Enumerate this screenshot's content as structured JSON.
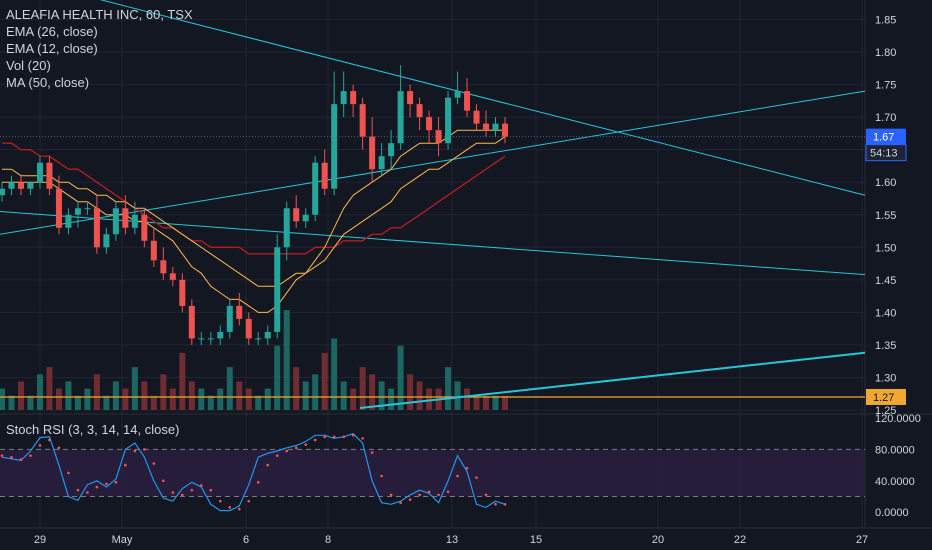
{
  "legend": {
    "title": "ALEAFIA HEALTH INC, 60, TSX",
    "ema26": "EMA (26, close)",
    "ema12": "EMA (12, close)",
    "vol": "Vol (20)",
    "ma50": "MA (50, close)"
  },
  "oscillator_label": "Stoch RSI (3, 3, 14, 14, close)",
  "price_badges": {
    "last": "1.67",
    "countdown": "54:13",
    "hline": "1.27"
  },
  "colors": {
    "background": "#131722",
    "up": "#26a69a",
    "down": "#ef5350",
    "ema26": "#ffb74d",
    "ema12": "#ffb74d",
    "ma50": "#b71c1c",
    "trendline": "#26c6da",
    "hline": "#f0a830",
    "stoch_k": "#2196f3",
    "stoch_d": "#ff5252",
    "badge_last": "#2962ff"
  },
  "chart_data": [
    {
      "type": "candlestick",
      "yaxis_ticks": [
        "1.85",
        "1.80",
        "1.75",
        "1.70",
        "1.65",
        "1.60",
        "1.55",
        "1.50",
        "1.45",
        "1.40",
        "1.35",
        "1.30",
        "1.25"
      ],
      "ylim": [
        1.25,
        1.88
      ],
      "xaxis_ticks": [
        "29",
        "May",
        "6",
        "8",
        "13",
        "15",
        "20",
        "22",
        "27"
      ],
      "series": [
        {
          "name": "price",
          "ohlc": [
            [
              1.58,
              1.6,
              1.57,
              1.59
            ],
            [
              1.59,
              1.61,
              1.58,
              1.6
            ],
            [
              1.6,
              1.61,
              1.58,
              1.59
            ],
            [
              1.59,
              1.6,
              1.58,
              1.6
            ],
            [
              1.6,
              1.64,
              1.59,
              1.63
            ],
            [
              1.63,
              1.64,
              1.58,
              1.59
            ],
            [
              1.59,
              1.61,
              1.52,
              1.53
            ],
            [
              1.53,
              1.56,
              1.52,
              1.55
            ],
            [
              1.55,
              1.57,
              1.53,
              1.56
            ],
            [
              1.56,
              1.57,
              1.55,
              1.56
            ],
            [
              1.56,
              1.58,
              1.49,
              1.5
            ],
            [
              1.5,
              1.53,
              1.49,
              1.52
            ],
            [
              1.52,
              1.57,
              1.51,
              1.56
            ],
            [
              1.56,
              1.58,
              1.52,
              1.53
            ],
            [
              1.53,
              1.57,
              1.52,
              1.55
            ],
            [
              1.55,
              1.56,
              1.5,
              1.51
            ],
            [
              1.51,
              1.53,
              1.47,
              1.48
            ],
            [
              1.48,
              1.5,
              1.45,
              1.46
            ],
            [
              1.46,
              1.47,
              1.44,
              1.45
            ],
            [
              1.45,
              1.46,
              1.4,
              1.41
            ],
            [
              1.41,
              1.42,
              1.35,
              1.36
            ],
            [
              1.36,
              1.37,
              1.35,
              1.36
            ],
            [
              1.36,
              1.37,
              1.35,
              1.36
            ],
            [
              1.36,
              1.38,
              1.35,
              1.37
            ],
            [
              1.37,
              1.42,
              1.36,
              1.41
            ],
            [
              1.41,
              1.43,
              1.38,
              1.39
            ],
            [
              1.39,
              1.4,
              1.35,
              1.36
            ],
            [
              1.36,
              1.37,
              1.35,
              1.36
            ],
            [
              1.36,
              1.38,
              1.35,
              1.37
            ],
            [
              1.37,
              1.52,
              1.36,
              1.5
            ],
            [
              1.5,
              1.57,
              1.48,
              1.56
            ],
            [
              1.56,
              1.58,
              1.53,
              1.54
            ],
            [
              1.54,
              1.56,
              1.53,
              1.55
            ],
            [
              1.55,
              1.64,
              1.54,
              1.63
            ],
            [
              1.63,
              1.65,
              1.58,
              1.59
            ],
            [
              1.59,
              1.77,
              1.58,
              1.72
            ],
            [
              1.72,
              1.77,
              1.7,
              1.74
            ],
            [
              1.74,
              1.75,
              1.7,
              1.72
            ],
            [
              1.72,
              1.73,
              1.65,
              1.67
            ],
            [
              1.67,
              1.7,
              1.6,
              1.62
            ],
            [
              1.62,
              1.66,
              1.61,
              1.64
            ],
            [
              1.64,
              1.68,
              1.62,
              1.66
            ],
            [
              1.66,
              1.78,
              1.65,
              1.74
            ],
            [
              1.74,
              1.75,
              1.7,
              1.72
            ],
            [
              1.72,
              1.73,
              1.68,
              1.7
            ],
            [
              1.7,
              1.71,
              1.66,
              1.68
            ],
            [
              1.68,
              1.7,
              1.64,
              1.66
            ],
            [
              1.66,
              1.74,
              1.65,
              1.73
            ],
            [
              1.73,
              1.77,
              1.72,
              1.74
            ],
            [
              1.74,
              1.76,
              1.7,
              1.71
            ],
            [
              1.71,
              1.72,
              1.68,
              1.69
            ],
            [
              1.69,
              1.71,
              1.67,
              1.68
            ],
            [
              1.68,
              1.7,
              1.67,
              1.69
            ],
            [
              1.69,
              1.7,
              1.66,
              1.67
            ]
          ]
        },
        {
          "name": "EMA (12, close)",
          "values": [
            1.6,
            1.6,
            1.6,
            1.6,
            1.6,
            1.6,
            1.59,
            1.58,
            1.57,
            1.57,
            1.56,
            1.55,
            1.55,
            1.55,
            1.54,
            1.54,
            1.53,
            1.52,
            1.51,
            1.49,
            1.47,
            1.46,
            1.44,
            1.43,
            1.42,
            1.42,
            1.41,
            1.4,
            1.4,
            1.41,
            1.43,
            1.45,
            1.46,
            1.48,
            1.5,
            1.53,
            1.56,
            1.58,
            1.59,
            1.6,
            1.61,
            1.62,
            1.64,
            1.65,
            1.66,
            1.66,
            1.66,
            1.67,
            1.68,
            1.68,
            1.68,
            1.68,
            1.68,
            1.68
          ]
        },
        {
          "name": "EMA (26, close)",
          "values": [
            1.62,
            1.62,
            1.61,
            1.61,
            1.61,
            1.61,
            1.6,
            1.6,
            1.59,
            1.59,
            1.58,
            1.58,
            1.57,
            1.57,
            1.56,
            1.56,
            1.55,
            1.54,
            1.53,
            1.52,
            1.51,
            1.5,
            1.49,
            1.48,
            1.47,
            1.46,
            1.45,
            1.44,
            1.44,
            1.44,
            1.45,
            1.46,
            1.46,
            1.47,
            1.48,
            1.5,
            1.52,
            1.53,
            1.54,
            1.55,
            1.56,
            1.57,
            1.59,
            1.6,
            1.61,
            1.62,
            1.62,
            1.63,
            1.64,
            1.65,
            1.66,
            1.66,
            1.66,
            1.67
          ]
        },
        {
          "name": "MA (50, close)",
          "values": [
            1.66,
            1.66,
            1.65,
            1.65,
            1.64,
            1.64,
            1.63,
            1.62,
            1.62,
            1.61,
            1.6,
            1.59,
            1.58,
            1.57,
            1.56,
            1.55,
            1.54,
            1.53,
            1.53,
            1.52,
            1.51,
            1.51,
            1.5,
            1.5,
            1.5,
            1.5,
            1.49,
            1.49,
            1.49,
            1.49,
            1.49,
            1.49,
            1.49,
            1.5,
            1.5,
            1.5,
            1.51,
            1.51,
            1.51,
            1.52,
            1.52,
            1.53,
            1.53,
            1.54,
            1.55,
            1.56,
            1.57,
            1.58,
            1.59,
            1.6,
            1.61,
            1.62,
            1.63,
            1.64
          ]
        },
        {
          "name": "Vol (20)",
          "values": [
            3,
            2,
            4,
            2,
            5,
            6,
            3,
            4,
            2,
            3,
            5,
            2,
            4,
            3,
            6,
            4,
            2,
            5,
            3,
            8,
            4,
            3,
            2,
            3,
            6,
            4,
            3,
            2,
            3,
            9,
            14,
            6,
            4,
            5,
            8,
            10,
            4,
            3,
            6,
            5,
            4,
            3,
            9,
            5,
            4,
            3,
            3,
            6,
            4,
            3,
            2,
            2,
            2,
            2
          ]
        }
      ],
      "hline_value": 1.27,
      "last_price": 1.67
    },
    {
      "type": "line",
      "title": "Stoch RSI (3, 3, 14, 14, close)",
      "yaxis_ticks": [
        "120.0000",
        "80.0000",
        "40.0000",
        "0.0000"
      ],
      "ylim": [
        -10,
        120
      ],
      "bands": [
        20,
        80
      ],
      "series": [
        {
          "name": "K",
          "values": [
            70,
            68,
            66,
            78,
            95,
            96,
            60,
            20,
            15,
            35,
            40,
            32,
            42,
            80,
            88,
            70,
            40,
            18,
            14,
            30,
            38,
            32,
            10,
            2,
            2,
            8,
            35,
            70,
            75,
            78,
            82,
            85,
            90,
            98,
            98,
            94,
            96,
            100,
            88,
            40,
            12,
            10,
            14,
            22,
            28,
            24,
            12,
            40,
            72,
            52,
            10,
            6,
            14,
            10
          ]
        },
        {
          "name": "D",
          "values": [
            72,
            70,
            67,
            72,
            85,
            92,
            82,
            50,
            28,
            25,
            32,
            36,
            38,
            60,
            78,
            80,
            62,
            40,
            25,
            22,
            28,
            34,
            28,
            14,
            6,
            4,
            14,
            38,
            60,
            72,
            78,
            82,
            86,
            92,
            96,
            96,
            96,
            98,
            94,
            76,
            46,
            22,
            12,
            16,
            22,
            26,
            22,
            26,
            46,
            56,
            44,
            22,
            10,
            10
          ]
        }
      ]
    }
  ]
}
